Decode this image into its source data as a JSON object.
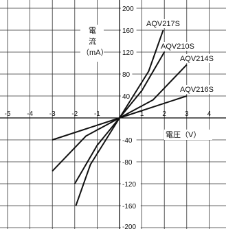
{
  "chart_data": {
    "type": "line",
    "title": "",
    "xlabel": "電圧（V）",
    "ylabel": "電流（mA）",
    "ylabel_lines": [
      "電",
      "流",
      "（mA）"
    ],
    "xlim": [
      -5,
      5
    ],
    "ylim": [
      -200,
      200
    ],
    "x_ticks": [
      -5,
      -4,
      -3,
      -2,
      -1,
      1,
      2,
      3,
      4
    ],
    "y_ticks": [
      200,
      160,
      120,
      80,
      40,
      -40,
      -80,
      -120,
      -160,
      -200
    ],
    "grid": true,
    "series": [
      {
        "name": "AQV217S",
        "x": [
          -1.95,
          -1.3,
          0,
          1.3,
          1.95
        ],
        "y": [
          -160,
          -85,
          0,
          85,
          160
        ]
      },
      {
        "name": "AQV210S",
        "x": [
          -2.0,
          -1.0,
          0,
          1.0,
          2.0
        ],
        "y": [
          -120,
          -50,
          0,
          50,
          120
        ]
      },
      {
        "name": "AQV214S",
        "x": [
          -3.0,
          -1.5,
          0,
          1.5,
          3.0
        ],
        "y": [
          -97,
          -33,
          0,
          33,
          97
        ]
      },
      {
        "name": "AQV216S",
        "x": [
          -3.0,
          0,
          3.0
        ],
        "y": [
          -40,
          0,
          40
        ]
      }
    ]
  }
}
